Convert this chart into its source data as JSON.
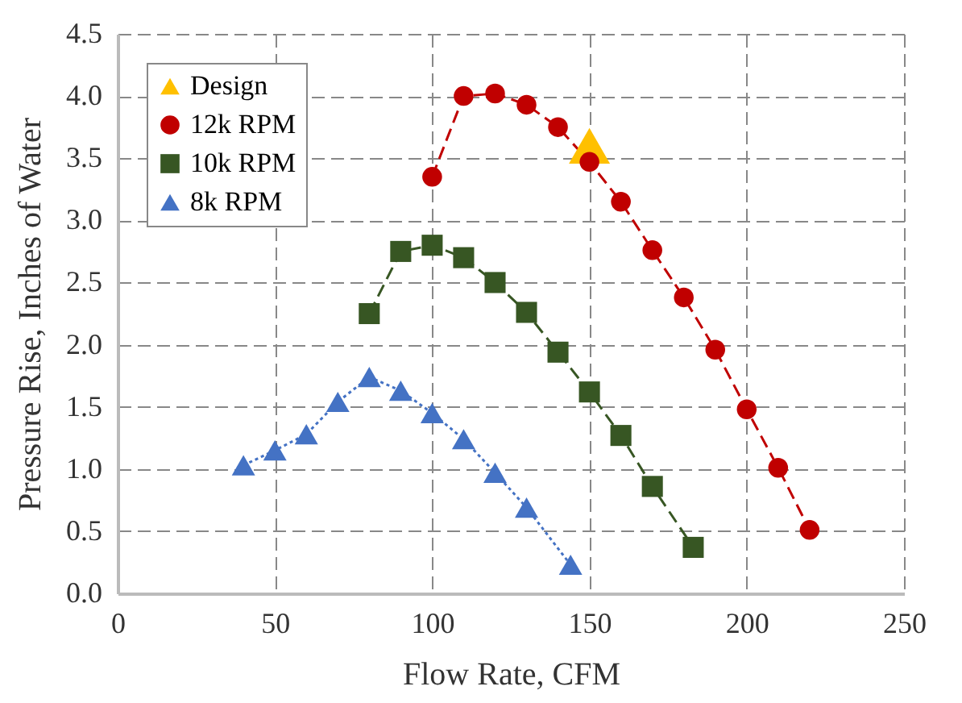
{
  "chart_data": {
    "type": "line",
    "xlabel": "Flow Rate, CFM",
    "ylabel": "Pressure Rise, Inches of Water",
    "xlim": [
      0,
      250
    ],
    "xticks": [
      0,
      50,
      100,
      150,
      200,
      250
    ],
    "ylim": [
      0,
      4.5
    ],
    "yticks": [
      {
        "value": 0,
        "label": "0.0"
      },
      0.5,
      {
        "value": 1,
        "label": "1.0"
      },
      1.5,
      {
        "value": 2,
        "label": "2.0"
      },
      2.5,
      {
        "value": 3,
        "label": "3.0"
      },
      3.5,
      {
        "value": 4,
        "label": "4.0"
      },
      4.5
    ],
    "grid": true,
    "legend": "top left",
    "series": [
      {
        "name": "Design",
        "type": "scatter",
        "marker": "triangle",
        "color": "#ffc000",
        "x": [
          150
        ],
        "values": [
          3.6
        ]
      },
      {
        "name": "12k RPM",
        "type": "line",
        "marker": "circle",
        "line_style": "dashed",
        "color": "#c00000",
        "x": [
          100,
          110,
          120,
          130,
          140,
          150,
          160,
          170,
          180,
          190,
          200,
          210,
          220
        ],
        "values": [
          3.35,
          4.0,
          4.02,
          3.93,
          3.75,
          3.47,
          3.15,
          2.76,
          2.38,
          1.96,
          1.48,
          1.01,
          0.51
        ]
      },
      {
        "name": "10k RPM",
        "type": "line",
        "marker": "square",
        "line_style": "dashed",
        "color": "#375623",
        "x": [
          80,
          90,
          100,
          110,
          120,
          130,
          140,
          150,
          160,
          170,
          183
        ],
        "values": [
          2.25,
          2.75,
          2.8,
          2.7,
          2.5,
          2.26,
          1.94,
          1.62,
          1.27,
          0.86,
          0.37
        ]
      },
      {
        "name": "8k RPM",
        "type": "line",
        "marker": "triangle",
        "line_style": "dotted",
        "color": "#4472c4",
        "x": [
          40,
          50,
          60,
          70,
          80,
          90,
          100,
          110,
          120,
          130,
          144
        ],
        "values": [
          1.03,
          1.15,
          1.28,
          1.54,
          1.74,
          1.63,
          1.45,
          1.24,
          0.97,
          0.69,
          0.23
        ]
      }
    ]
  }
}
